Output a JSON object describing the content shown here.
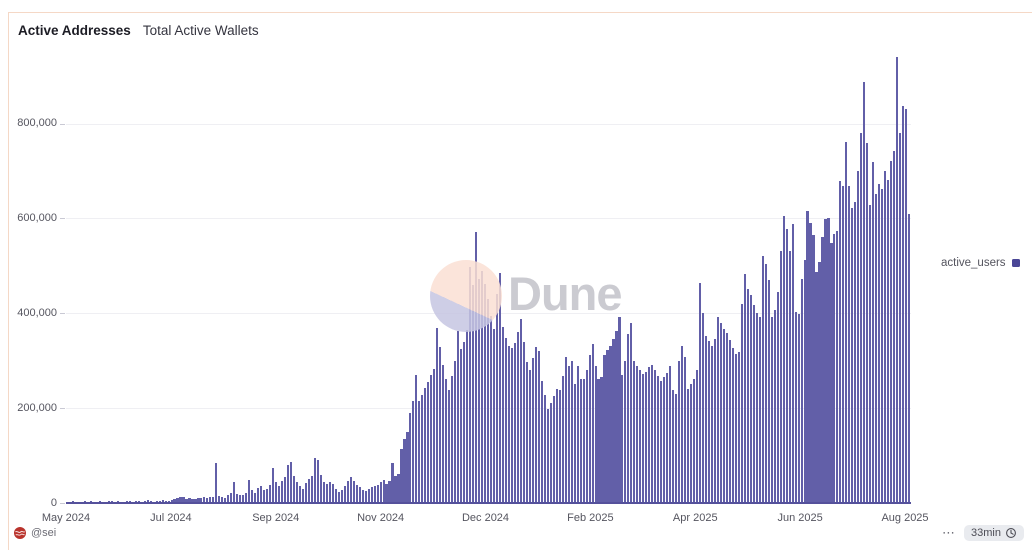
{
  "header": {
    "title": "Active Addresses",
    "subtitle": "Total Active Wallets"
  },
  "legend": {
    "label": "active_users",
    "color": "#4a4696"
  },
  "watermark": {
    "text": "Dune"
  },
  "footer": {
    "author": "@sei",
    "menu_dots": "⋯",
    "refresh_badge": "33min"
  },
  "chart_data": {
    "type": "bar",
    "title": "Active Addresses",
    "subtitle": "Total Active Wallets",
    "series_name": "active_users",
    "bar_color": "#625fa8",
    "granularity": "daily (values approximate, read from chart)",
    "x_range": [
      "May 2024",
      "Aug 2025"
    ],
    "x_tick_labels": [
      "May 2024",
      "Jul 2024",
      "Sep 2024",
      "Nov 2024",
      "Dec 2024",
      "Feb 2025",
      "Apr 2025",
      "Jun 2025",
      "Aug 2025"
    ],
    "y_tick_labels": [
      "0",
      "200,000",
      "400,000",
      "600,000",
      "800,000"
    ],
    "y_tick_values": [
      0,
      200000,
      400000,
      600000,
      800000
    ],
    "ylim": [
      0,
      970000
    ],
    "grid": "horizontal light-gray lines at 200k steps, legend at right",
    "values": [
      3000,
      2000,
      4000,
      3000,
      2000,
      3000,
      4000,
      3000,
      5000,
      2000,
      3000,
      4000,
      3000,
      2000,
      4000,
      5000,
      3000,
      4000,
      2000,
      3000,
      5000,
      4000,
      3000,
      4000,
      5000,
      3000,
      4000,
      6000,
      4000,
      3000,
      5000,
      4000,
      6000,
      5000,
      4000,
      6000,
      8000,
      10000,
      13000,
      12000,
      9000,
      10000,
      8000,
      9000,
      11000,
      10000,
      12000,
      11000,
      13000,
      12000,
      85000,
      14000,
      12000,
      11000,
      16000,
      22000,
      45000,
      20000,
      17000,
      16000,
      21000,
      49000,
      27000,
      22000,
      31000,
      35000,
      28000,
      30000,
      38000,
      73000,
      45000,
      35000,
      46000,
      55000,
      80000,
      87000,
      58000,
      44000,
      36000,
      30000,
      42000,
      50000,
      56000,
      94000,
      91000,
      60000,
      45000,
      41000,
      44000,
      40000,
      30000,
      24000,
      27000,
      36000,
      46000,
      55000,
      47000,
      39000,
      33000,
      27000,
      25000,
      29000,
      33000,
      37000,
      38000,
      44000,
      48000,
      40000,
      46000,
      85000,
      57000,
      62000,
      115000,
      135000,
      150000,
      190000,
      215000,
      271000,
      215000,
      228000,
      242000,
      256000,
      270000,
      282000,
      370000,
      330000,
      292000,
      262000,
      238000,
      268000,
      300000,
      363000,
      325000,
      340000,
      365000,
      497000,
      460000,
      571000,
      472000,
      490000,
      462000,
      430000,
      395000,
      368000,
      440000,
      485000,
      372000,
      348000,
      332000,
      326000,
      338000,
      360000,
      389000,
      340000,
      298000,
      280000,
      305000,
      330000,
      320000,
      258000,
      228000,
      198000,
      210000,
      225000,
      240000,
      238000,
      268000,
      308000,
      290000,
      300000,
      252000,
      288000,
      262000,
      262000,
      280000,
      312000,
      335000,
      290000,
      262000,
      266000,
      312000,
      322000,
      332000,
      345000,
      362000,
      392000,
      270000,
      300000,
      356000,
      380000,
      300000,
      290000,
      280000,
      272000,
      277000,
      287000,
      292000,
      280000,
      268000,
      258000,
      266000,
      274000,
      288000,
      238000,
      230000,
      300000,
      331000,
      308000,
      240000,
      252000,
      262000,
      281000,
      465000,
      400000,
      352000,
      341000,
      331000,
      346000,
      393000,
      379000,
      368000,
      358000,
      343000,
      328000,
      315000,
      318000,
      420000,
      482000,
      452000,
      438000,
      418000,
      400000,
      392000,
      521000,
      505000,
      470000,
      392000,
      408000,
      446000,
      531000,
      606000,
      578000,
      532000,
      588000,
      402000,
      398000,
      472000,
      512000,
      616000,
      590000,
      566000,
      488000,
      508000,
      562000,
      600000,
      601000,
      548000,
      568000,
      574000,
      680000,
      668000,
      762000,
      668000,
      622000,
      634000,
      700000,
      780000,
      887000,
      760000,
      628000,
      720000,
      652000,
      672000,
      662000,
      700000,
      682000,
      722000,
      742000,
      941000,
      780000,
      838000,
      830000,
      610000
    ]
  }
}
